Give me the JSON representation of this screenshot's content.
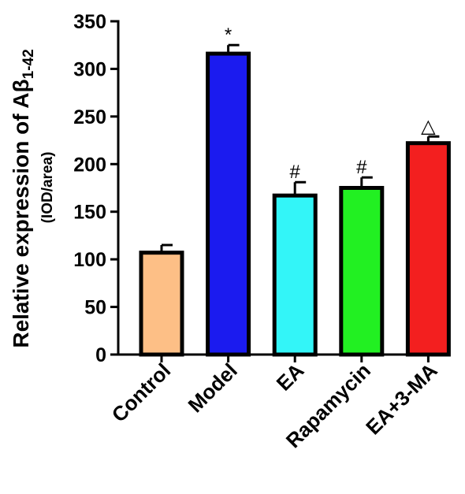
{
  "chart_data": {
    "type": "bar",
    "title": "",
    "ylabel": "Relative expression of Aβ",
    "ylabel_subscript": "1-42",
    "ylabel_sub": "(IOD/area)",
    "xlabel": "",
    "ylim": [
      0,
      350
    ],
    "yticks": [
      "0",
      "50",
      "100",
      "150",
      "200",
      "250",
      "300",
      "350"
    ],
    "categories": [
      "Control",
      "Model",
      "EA",
      "Rapamycin",
      "EA+3-MA"
    ],
    "values": [
      107,
      316,
      167,
      175,
      222
    ],
    "errors": [
      8,
      9,
      14,
      11,
      7
    ],
    "annotations": [
      "",
      "*",
      "#",
      "#",
      "△"
    ],
    "colors": [
      "#FDBF86",
      "#1B1BEF",
      "#33F5F8",
      "#22F022",
      "#F31F1F"
    ],
    "grid": false,
    "legend": "none"
  }
}
